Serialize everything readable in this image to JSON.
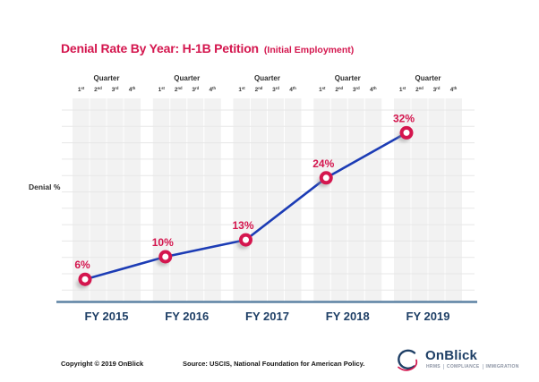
{
  "title": {
    "main": "Denial Rate By Year: H-1B Petition",
    "sub": "(Initial Employment)",
    "color": "#d4164e"
  },
  "axis": {
    "y_label": "Denial %",
    "quarter_header": "Quarter",
    "quarter_ticks": [
      "1st",
      "2nd",
      "3rd",
      "4th"
    ]
  },
  "chart_data": {
    "type": "line",
    "title": "Denial Rate By Year: H-1B Petition (Initial Employment)",
    "categories": [
      "FY 2015",
      "FY 2016",
      "FY 2017",
      "FY 2018",
      "FY 2019"
    ],
    "values": [
      6,
      10,
      13,
      24,
      32
    ],
    "point_labels": [
      "6%",
      "10%",
      "13%",
      "24%",
      "32%"
    ],
    "x_subcolumns_per_category": [
      "1st",
      "2nd",
      "3rd",
      "4th"
    ],
    "xlabel": "",
    "ylabel": "Denial %",
    "ylim": [
      0,
      36
    ],
    "grid": true,
    "legend": false,
    "line_color": "#1c3cb5",
    "marker_color": "#d4164e",
    "marker_style": "open-circle",
    "category_label_color": "#1e3f66",
    "column_fill": "#f2f2f2"
  },
  "footer": {
    "copyright": "Copyright © 2019 OnBlick",
    "source": "Source: USCIS, National Foundation for American Policy."
  },
  "logo": {
    "name": "OnBlick",
    "tagline": [
      "HRMS",
      "COMPLIANCE",
      "IMMIGRATION"
    ]
  }
}
